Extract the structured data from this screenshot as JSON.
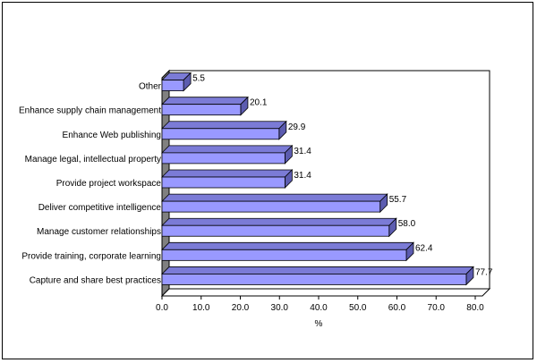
{
  "chart_data": {
    "type": "bar",
    "orientation": "horizontal",
    "three_d": true,
    "categories": [
      "Other",
      "Enhance supply chain management",
      "Enhance Web publishing",
      "Manage legal, intellectual property",
      "Provide project workspace",
      "Deliver competitive intelligence",
      "Manage customer relationships",
      "Provide training, corporate learning",
      "Capture and share best practices"
    ],
    "values": [
      5.5,
      20.1,
      29.9,
      31.4,
      31.4,
      55.7,
      58.0,
      62.4,
      77.7
    ],
    "value_labels": [
      "5.5",
      "20.1",
      "29.9",
      "31.4",
      "31.4",
      "55.7",
      "58.0",
      "62.4",
      "77.7"
    ],
    "xlabel": "%",
    "xlim": [
      0,
      80
    ],
    "xticks": [
      "0.0",
      "10.0",
      "20.0",
      "30.0",
      "40.0",
      "50.0",
      "60.0",
      "70.0",
      "80.0"
    ],
    "grid": false,
    "legend": "none",
    "colors": {
      "bar_front": "#9999ff",
      "bar_top": "#7b7bd6",
      "bar_side": "#5c5cb0",
      "wall": "#808080",
      "outline": "#000000"
    }
  }
}
